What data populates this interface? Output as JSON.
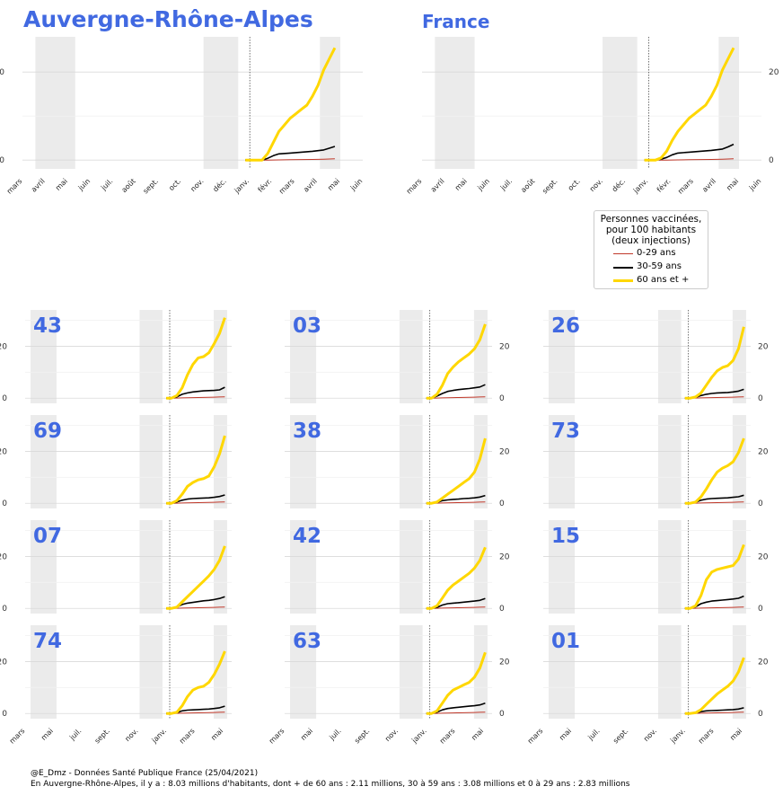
{
  "chart_data": [
    {
      "type": "line",
      "title": "Auvergne-Rhône-Alpes",
      "x_ticks": [
        "mars",
        "avril",
        "mai",
        "juin",
        "juil.",
        "août",
        "sept.",
        "oct.",
        "nov.",
        "déc.",
        "janv.",
        "févr.",
        "mars",
        "avril",
        "mai",
        "juin"
      ],
      "y_ticks": [
        0,
        20
      ],
      "ylim": [
        -2,
        28
      ],
      "series": [
        {
          "name": "0-29 ans",
          "color": "#c0392b",
          "x": [
            0,
            2,
            4,
            6,
            8,
            10,
            12,
            14,
            16
          ],
          "values": [
            0,
            0,
            0,
            0.05,
            0.08,
            0.12,
            0.15,
            0.2,
            0.3
          ]
        },
        {
          "name": "30-59 ans",
          "color": "#000000",
          "x": [
            0,
            2,
            3,
            4,
            5,
            6,
            8,
            10,
            12,
            14,
            15,
            16
          ],
          "values": [
            0,
            0,
            0,
            0.4,
            1.0,
            1.4,
            1.6,
            1.8,
            2.0,
            2.3,
            2.7,
            3.1
          ]
        },
        {
          "name": "60 ans et +",
          "color": "#ffd700",
          "x": [
            0,
            2,
            3,
            4,
            5,
            6,
            7,
            8,
            9,
            10,
            11,
            12,
            13,
            14,
            15,
            16
          ],
          "values": [
            0,
            0,
            0,
            1.5,
            4.0,
            6.5,
            8.0,
            9.5,
            10.5,
            11.5,
            12.5,
            14.5,
            17.0,
            20.5,
            23.0,
            25.5
          ]
        }
      ]
    },
    {
      "type": "line",
      "title": "France",
      "x_ticks": [
        "mars",
        "avril",
        "mai",
        "juin",
        "juil.",
        "août",
        "sept.",
        "oct.",
        "nov.",
        "déc.",
        "janv.",
        "févr.",
        "mars",
        "avril",
        "mai",
        "juin"
      ],
      "y_ticks": [
        0,
        20
      ],
      "ylim": [
        -2,
        28
      ],
      "series": [
        {
          "name": "0-29 ans",
          "color": "#c0392b",
          "x": [
            0,
            2,
            4,
            6,
            8,
            10,
            12,
            14,
            16
          ],
          "values": [
            0,
            0,
            0,
            0.05,
            0.08,
            0.12,
            0.15,
            0.2,
            0.3
          ]
        },
        {
          "name": "30-59 ans",
          "color": "#000000",
          "x": [
            0,
            2,
            3,
            4,
            5,
            6,
            8,
            10,
            12,
            14,
            15,
            16
          ],
          "values": [
            0,
            0,
            0.2,
            0.6,
            1.2,
            1.6,
            1.8,
            2.0,
            2.2,
            2.5,
            3.0,
            3.6
          ]
        },
        {
          "name": "60 ans et +",
          "color": "#ffd700",
          "x": [
            0,
            2,
            3,
            4,
            5,
            6,
            7,
            8,
            9,
            10,
            11,
            12,
            13,
            14,
            15,
            16
          ],
          "values": [
            0,
            0,
            0.5,
            2.0,
            4.5,
            6.5,
            8.0,
            9.5,
            10.5,
            11.5,
            12.5,
            14.5,
            17.0,
            20.5,
            23.0,
            25.5
          ]
        }
      ]
    },
    {
      "type": "line",
      "title": "43",
      "values_60": [
        0,
        0,
        1,
        4,
        9,
        13,
        15.5,
        16,
        17.5,
        21,
        25,
        31
      ],
      "values_30": [
        0,
        0,
        0.5,
        1.5,
        2,
        2.4,
        2.6,
        2.8,
        2.9,
        3,
        3.2,
        4.2
      ],
      "values_0": [
        0,
        0,
        0.05,
        0.1,
        0.15,
        0.2,
        0.25,
        0.3,
        0.35,
        0.4,
        0.45,
        0.5
      ]
    },
    {
      "type": "line",
      "title": "03",
      "values_60": [
        0,
        0,
        1.5,
        5,
        9.5,
        12,
        14,
        15.5,
        17,
        19,
        22.5,
        28.5
      ],
      "values_30": [
        0,
        0,
        0.8,
        1.8,
        2.6,
        3,
        3.3,
        3.5,
        3.7,
        4,
        4.3,
        5.2
      ],
      "values_0": [
        0,
        0,
        0.05,
        0.1,
        0.15,
        0.2,
        0.25,
        0.3,
        0.35,
        0.4,
        0.45,
        0.5
      ]
    },
    {
      "type": "line",
      "title": "26",
      "values_60": [
        0,
        0,
        0.5,
        2,
        5,
        8,
        10.5,
        11.8,
        12.5,
        14.5,
        19,
        27.5
      ],
      "values_30": [
        0,
        0,
        0.3,
        1,
        1.5,
        1.8,
        2,
        2.1,
        2.2,
        2.4,
        2.7,
        3.4
      ],
      "values_0": [
        0,
        0,
        0.05,
        0.1,
        0.15,
        0.2,
        0.25,
        0.3,
        0.35,
        0.4,
        0.45,
        0.5
      ]
    },
    {
      "type": "line",
      "title": "69",
      "values_60": [
        0,
        0,
        1,
        3.5,
        6.5,
        8,
        9,
        9.5,
        10.5,
        14,
        19,
        26
      ],
      "values_30": [
        0,
        0,
        0.5,
        1.2,
        1.6,
        1.8,
        1.9,
        2,
        2.1,
        2.3,
        2.6,
        3.2
      ],
      "values_0": [
        0,
        0,
        0.05,
        0.1,
        0.15,
        0.2,
        0.25,
        0.3,
        0.35,
        0.4,
        0.45,
        0.5
      ]
    },
    {
      "type": "line",
      "title": "38",
      "values_60": [
        0,
        0,
        0.5,
        2,
        3.5,
        5,
        6.5,
        8,
        9.5,
        12,
        17,
        25
      ],
      "values_30": [
        0,
        0,
        0.3,
        1,
        1.3,
        1.5,
        1.6,
        1.8,
        1.9,
        2.1,
        2.4,
        3
      ],
      "values_0": [
        0,
        0,
        0.05,
        0.1,
        0.15,
        0.2,
        0.25,
        0.3,
        0.35,
        0.4,
        0.45,
        0.5
      ]
    },
    {
      "type": "line",
      "title": "73",
      "values_60": [
        0,
        0,
        0.5,
        2.5,
        5.5,
        9,
        12,
        13.5,
        14.5,
        16,
        19.5,
        25
      ],
      "values_30": [
        0,
        0,
        0.4,
        1.2,
        1.6,
        1.8,
        1.9,
        2,
        2.1,
        2.3,
        2.5,
        3.1
      ],
      "values_0": [
        0,
        0,
        0.05,
        0.1,
        0.15,
        0.2,
        0.25,
        0.3,
        0.35,
        0.4,
        0.45,
        0.5
      ]
    },
    {
      "type": "line",
      "title": "07",
      "values_60": [
        0,
        0,
        0.5,
        2.5,
        4.5,
        6.5,
        8.5,
        10.5,
        12.5,
        15,
        18.5,
        24
      ],
      "values_30": [
        0,
        0,
        0.5,
        1.5,
        2,
        2.3,
        2.6,
        2.9,
        3.1,
        3.4,
        3.8,
        4.5
      ],
      "values_0": [
        0,
        0,
        0.05,
        0.1,
        0.15,
        0.2,
        0.25,
        0.3,
        0.35,
        0.4,
        0.45,
        0.5
      ]
    },
    {
      "type": "line",
      "title": "42",
      "values_60": [
        0,
        0,
        1,
        4,
        7,
        9,
        10.5,
        12,
        13.5,
        15.5,
        18.5,
        23.5
      ],
      "values_30": [
        0,
        0,
        0.4,
        1.3,
        1.8,
        2,
        2.2,
        2.4,
        2.6,
        2.8,
        3.1,
        3.8
      ],
      "values_0": [
        0,
        0,
        0.05,
        0.1,
        0.15,
        0.2,
        0.25,
        0.3,
        0.35,
        0.4,
        0.45,
        0.5
      ]
    },
    {
      "type": "line",
      "title": "15",
      "values_60": [
        0,
        0,
        1,
        5,
        11,
        14,
        15,
        15.5,
        16,
        16.5,
        19,
        24.5
      ],
      "values_30": [
        0,
        0,
        0.6,
        1.8,
        2.4,
        2.8,
        3,
        3.2,
        3.4,
        3.6,
        3.9,
        4.7
      ],
      "values_0": [
        0,
        0,
        0.05,
        0.1,
        0.15,
        0.2,
        0.25,
        0.3,
        0.35,
        0.4,
        0.45,
        0.5
      ]
    },
    {
      "type": "line",
      "title": "74",
      "values_60": [
        0,
        0,
        0.5,
        3,
        6.5,
        9,
        10,
        10.5,
        12,
        15,
        19,
        24
      ],
      "values_30": [
        0,
        0,
        0.3,
        1,
        1.3,
        1.4,
        1.5,
        1.6,
        1.7,
        1.9,
        2.2,
        2.8
      ],
      "values_0": [
        0,
        0,
        0.05,
        0.1,
        0.15,
        0.2,
        0.25,
        0.3,
        0.35,
        0.4,
        0.45,
        0.5
      ]
    },
    {
      "type": "line",
      "title": "63",
      "values_60": [
        0,
        0,
        1,
        4,
        7,
        9,
        10,
        11,
        12,
        14,
        17.5,
        23.5
      ],
      "values_30": [
        0,
        0,
        0.5,
        1.4,
        1.9,
        2.2,
        2.4,
        2.6,
        2.8,
        3,
        3.3,
        4
      ],
      "values_0": [
        0,
        0,
        0.05,
        0.1,
        0.15,
        0.2,
        0.25,
        0.3,
        0.35,
        0.4,
        0.45,
        0.5
      ]
    },
    {
      "type": "line",
      "title": "01",
      "values_60": [
        0,
        0,
        0.3,
        1.5,
        3.5,
        5.5,
        7.5,
        9,
        10.5,
        12.5,
        16,
        21.5
      ],
      "values_30": [
        0,
        0,
        0.2,
        0.7,
        1,
        1.1,
        1.2,
        1.3,
        1.4,
        1.5,
        1.7,
        2.2
      ],
      "values_0": [
        0,
        0,
        0.05,
        0.1,
        0.15,
        0.2,
        0.25,
        0.3,
        0.35,
        0.4,
        0.45,
        0.5
      ]
    }
  ],
  "small_x_ticks": [
    "mars",
    "mai",
    "juil.",
    "sept.",
    "nov.",
    "janv.",
    "mars",
    "mai"
  ],
  "small_y_ticks": [
    0,
    20
  ],
  "legend": {
    "title_l1": "Personnes vaccinées,",
    "title_l2": "pour 100 habitants",
    "title_l3": "(deux injections)",
    "items": [
      {
        "label": "0-29 ans",
        "color": "#c0392b"
      },
      {
        "label": "30-59 ans",
        "color": "#000000"
      },
      {
        "label": "60 ans et +",
        "color": "#ffd700"
      }
    ]
  },
  "colors": {
    "title": "#4169e1",
    "shade": "#ebebeb",
    "grid": "#d9d9d9",
    "minor_grid": "#f2f2f2"
  },
  "footer": {
    "line1": "@E_Dmz - Données Santé Publique France (25/04/2021)",
    "line2": "En Auvergne-Rhône-Alpes, il y a : 8.03 millions d'habitants, dont + de 60 ans : 2.11 millions, 30 à 59 ans : 3.08 millions et 0 à 29 ans : 2.83 millions"
  }
}
